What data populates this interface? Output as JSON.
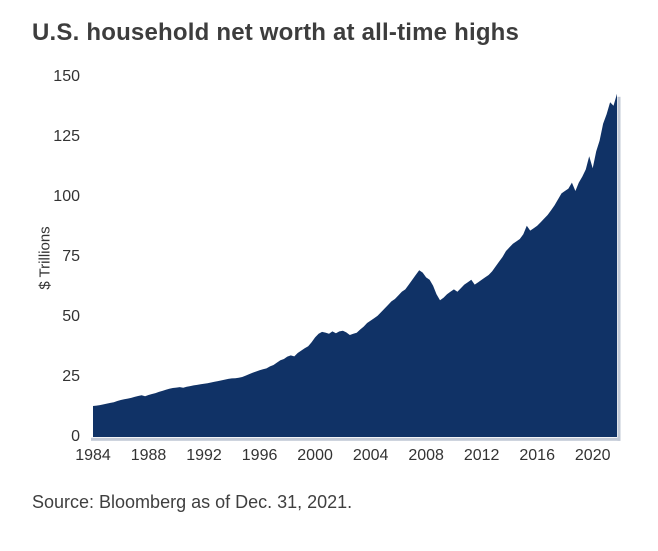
{
  "header": {
    "title": "U.S. household net worth at all-time highs"
  },
  "footer": {
    "source": "Source: Bloomberg as of Dec. 31, 2021."
  },
  "colors": {
    "area_fill": "#103266",
    "shadow": "#c2c9d6",
    "title_text": "#3d3d3d",
    "axis_text": "#333333",
    "source_text": "#3f3f3f",
    "background": "#ffffff"
  },
  "chart_data": {
    "type": "area",
    "title": "U.S. household net worth at all-time highs",
    "xlabel": "",
    "ylabel": "$ Trillions",
    "ylim": [
      0,
      150
    ],
    "yticks": [
      0,
      25,
      50,
      75,
      100,
      125,
      150
    ],
    "xticks": [
      1984,
      1988,
      1992,
      1996,
      2000,
      2004,
      2008,
      2012,
      2016,
      2020
    ],
    "x_start": 1984.0,
    "x_end": 2021.75,
    "x_frequency": "quarterly",
    "grid": false,
    "legend_position": "none",
    "series": [
      {
        "name": "U.S. household net worth ($ Trillions)",
        "values": [
          12.9,
          13.1,
          13.3,
          13.6,
          13.9,
          14.2,
          14.5,
          15.0,
          15.4,
          15.7,
          16.0,
          16.3,
          16.7,
          17.1,
          17.4,
          17.0,
          17.5,
          17.9,
          18.3,
          18.8,
          19.2,
          19.7,
          20.1,
          20.4,
          20.6,
          20.8,
          20.5,
          20.9,
          21.2,
          21.5,
          21.7,
          22.0,
          22.2,
          22.4,
          22.7,
          23.0,
          23.3,
          23.6,
          23.9,
          24.2,
          24.4,
          24.5,
          24.7,
          25.0,
          25.6,
          26.2,
          26.8,
          27.3,
          27.8,
          28.2,
          28.6,
          29.4,
          30.0,
          31.0,
          32.0,
          32.5,
          33.5,
          34.0,
          33.6,
          35.0,
          36.0,
          37.0,
          37.8,
          39.5,
          41.5,
          43.0,
          43.8,
          43.5,
          43.0,
          44.0,
          43.2,
          44.0,
          44.3,
          43.6,
          42.5,
          43.0,
          43.4,
          44.8,
          46.0,
          47.5,
          48.5,
          49.5,
          50.5,
          52.0,
          53.5,
          55.0,
          56.5,
          57.5,
          59.0,
          60.5,
          61.5,
          63.5,
          65.5,
          67.5,
          69.5,
          68.5,
          66.5,
          65.5,
          63.0,
          59.5,
          57.0,
          58.0,
          59.5,
          60.5,
          61.5,
          60.5,
          62.0,
          63.5,
          64.5,
          65.5,
          63.5,
          64.5,
          65.5,
          66.5,
          67.5,
          69.0,
          71.0,
          73.0,
          75.0,
          77.5,
          79.0,
          80.5,
          81.5,
          82.5,
          84.5,
          88.0,
          86.0,
          87.0,
          88.0,
          89.5,
          91.0,
          92.5,
          94.5,
          96.5,
          99.0,
          101.5,
          102.5,
          103.5,
          106.0,
          102.5,
          106.0,
          108.5,
          111.5,
          117.0,
          112.0,
          119.0,
          123.5,
          130.5,
          134.5,
          139.5,
          138.0,
          143.0
        ]
      }
    ]
  }
}
